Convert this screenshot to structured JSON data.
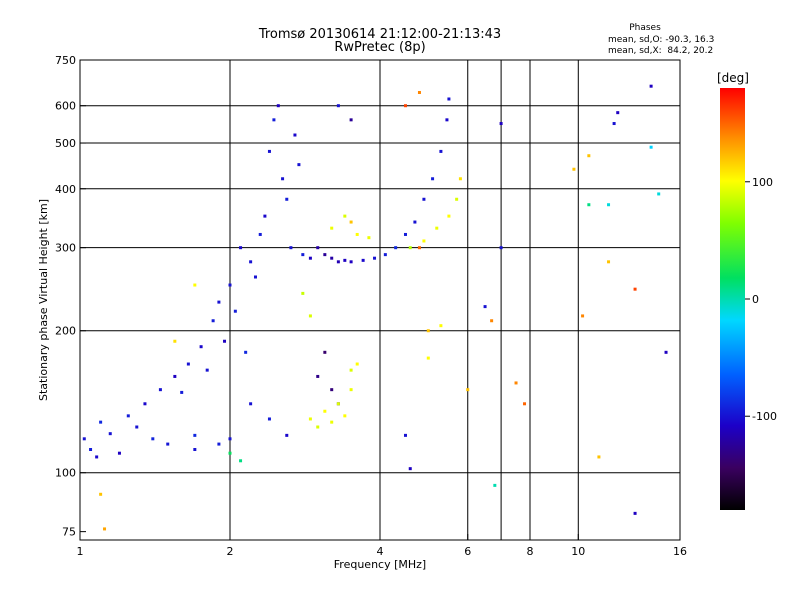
{
  "chart_data": {
    "type": "scatter",
    "title": "Tromsø 20130614 21:12:00-21:13:43",
    "subtitle": "RwPretec (8p)",
    "xlabel": "Frequency [MHz]",
    "ylabel": "Stationary phase Virtual Height [km]",
    "x_scale": "log",
    "y_scale": "log",
    "xlim": [
      1,
      16
    ],
    "ylim": [
      72,
      750
    ],
    "x_ticks": [
      1,
      2,
      4,
      6,
      8,
      10,
      16
    ],
    "x_tick_labels": [
      "1",
      "2",
      "4",
      "6",
      "8",
      "10",
      "16"
    ],
    "x_grid": [
      2,
      4,
      6,
      7,
      8,
      10
    ],
    "y_ticks": [
      75,
      100,
      200,
      300,
      400,
      500,
      600,
      750
    ],
    "y_tick_labels": [
      "75",
      "100",
      "200",
      "300",
      "400",
      "500",
      "600",
      "750"
    ],
    "y_grid": [
      100,
      200,
      300,
      400,
      500,
      600
    ],
    "grid": true,
    "phases_box": {
      "title": "Phases",
      "line_o": "mean, sd,O: -90.3, 16.3",
      "line_x": "mean, sd,X:  84.2, 20.2"
    },
    "colorbar": {
      "label": "[deg]",
      "range": [
        -180,
        180
      ],
      "ticks": [
        100,
        0,
        -100
      ],
      "tick_labels": [
        "100",
        "0",
        "-100"
      ]
    },
    "series": [
      {
        "name": "",
        "points": [
          {
            "x": 1.02,
            "y": 118,
            "phase": -100
          },
          {
            "x": 1.05,
            "y": 112,
            "phase": -95
          },
          {
            "x": 1.08,
            "y": 108,
            "phase": -105
          },
          {
            "x": 1.1,
            "y": 128,
            "phase": -90
          },
          {
            "x": 1.15,
            "y": 121,
            "phase": -100
          },
          {
            "x": 1.2,
            "y": 110,
            "phase": -110
          },
          {
            "x": 1.25,
            "y": 132,
            "phase": -95
          },
          {
            "x": 1.3,
            "y": 125,
            "phase": -100
          },
          {
            "x": 1.35,
            "y": 140,
            "phase": -105
          },
          {
            "x": 1.4,
            "y": 118,
            "phase": -92
          },
          {
            "x": 1.45,
            "y": 150,
            "phase": -100
          },
          {
            "x": 1.5,
            "y": 115,
            "phase": -98
          },
          {
            "x": 1.55,
            "y": 160,
            "phase": -110
          },
          {
            "x": 1.6,
            "y": 148,
            "phase": -95
          },
          {
            "x": 1.65,
            "y": 170,
            "phase": -100
          },
          {
            "x": 1.7,
            "y": 120,
            "phase": -90
          },
          {
            "x": 1.75,
            "y": 185,
            "phase": -105
          },
          {
            "x": 1.8,
            "y": 165,
            "phase": -100
          },
          {
            "x": 1.85,
            "y": 210,
            "phase": -95
          },
          {
            "x": 1.9,
            "y": 230,
            "phase": -100
          },
          {
            "x": 1.95,
            "y": 190,
            "phase": -110
          },
          {
            "x": 2.0,
            "y": 250,
            "phase": -100
          },
          {
            "x": 2.05,
            "y": 220,
            "phase": -95
          },
          {
            "x": 2.1,
            "y": 300,
            "phase": -105
          },
          {
            "x": 2.15,
            "y": 180,
            "phase": -90
          },
          {
            "x": 2.2,
            "y": 280,
            "phase": -100
          },
          {
            "x": 2.25,
            "y": 260,
            "phase": -100
          },
          {
            "x": 2.3,
            "y": 320,
            "phase": -95
          },
          {
            "x": 2.35,
            "y": 350,
            "phase": -105
          },
          {
            "x": 2.4,
            "y": 480,
            "phase": -100
          },
          {
            "x": 2.45,
            "y": 560,
            "phase": -95
          },
          {
            "x": 2.5,
            "y": 600,
            "phase": -110
          },
          {
            "x": 2.55,
            "y": 420,
            "phase": -100
          },
          {
            "x": 2.6,
            "y": 380,
            "phase": -95
          },
          {
            "x": 2.65,
            "y": 300,
            "phase": -100
          },
          {
            "x": 2.7,
            "y": 520,
            "phase": -105
          },
          {
            "x": 2.75,
            "y": 450,
            "phase": -100
          },
          {
            "x": 2.8,
            "y": 290,
            "phase": -95
          },
          {
            "x": 2.9,
            "y": 285,
            "phase": -110
          },
          {
            "x": 3.0,
            "y": 300,
            "phase": -120
          },
          {
            "x": 3.1,
            "y": 290,
            "phase": -125
          },
          {
            "x": 3.2,
            "y": 285,
            "phase": -120
          },
          {
            "x": 3.3,
            "y": 280,
            "phase": -115
          },
          {
            "x": 3.4,
            "y": 282,
            "phase": -110
          },
          {
            "x": 3.5,
            "y": 280,
            "phase": -110
          },
          {
            "x": 3.7,
            "y": 282,
            "phase": -105
          },
          {
            "x": 3.9,
            "y": 285,
            "phase": -100
          },
          {
            "x": 4.1,
            "y": 290,
            "phase": -95
          },
          {
            "x": 4.3,
            "y": 300,
            "phase": -90
          },
          {
            "x": 4.5,
            "y": 320,
            "phase": -95
          },
          {
            "x": 4.7,
            "y": 340,
            "phase": -100
          },
          {
            "x": 4.9,
            "y": 380,
            "phase": -100
          },
          {
            "x": 5.1,
            "y": 420,
            "phase": -95
          },
          {
            "x": 5.3,
            "y": 480,
            "phase": -100
          },
          {
            "x": 5.45,
            "y": 560,
            "phase": -105
          },
          {
            "x": 5.5,
            "y": 620,
            "phase": -100
          },
          {
            "x": 3.0,
            "y": 160,
            "phase": -130
          },
          {
            "x": 3.1,
            "y": 180,
            "phase": -140
          },
          {
            "x": 3.2,
            "y": 150,
            "phase": -135
          },
          {
            "x": 3.3,
            "y": 140,
            "phase": -130
          },
          {
            "x": 3.3,
            "y": 600,
            "phase": -100
          },
          {
            "x": 3.5,
            "y": 560,
            "phase": -125
          },
          {
            "x": 2.2,
            "y": 140,
            "phase": -100
          },
          {
            "x": 2.4,
            "y": 130,
            "phase": -95
          },
          {
            "x": 2.6,
            "y": 120,
            "phase": -105
          },
          {
            "x": 1.7,
            "y": 112,
            "phase": -100
          },
          {
            "x": 1.9,
            "y": 115,
            "phase": -95
          },
          {
            "x": 2.0,
            "y": 118,
            "phase": -100
          },
          {
            "x": 2.9,
            "y": 130,
            "phase": 95
          },
          {
            "x": 3.0,
            "y": 125,
            "phase": 90
          },
          {
            "x": 3.1,
            "y": 135,
            "phase": 100
          },
          {
            "x": 3.2,
            "y": 128,
            "phase": 95
          },
          {
            "x": 3.3,
            "y": 140,
            "phase": 90
          },
          {
            "x": 3.4,
            "y": 132,
            "phase": 100
          },
          {
            "x": 3.5,
            "y": 150,
            "phase": 95
          },
          {
            "x": 3.6,
            "y": 170,
            "phase": 100
          },
          {
            "x": 3.5,
            "y": 165,
            "phase": 90
          },
          {
            "x": 2.8,
            "y": 240,
            "phase": 85
          },
          {
            "x": 2.9,
            "y": 215,
            "phase": 90
          },
          {
            "x": 3.2,
            "y": 330,
            "phase": 95
          },
          {
            "x": 3.4,
            "y": 350,
            "phase": 90
          },
          {
            "x": 3.6,
            "y": 320,
            "phase": 100
          },
          {
            "x": 3.8,
            "y": 315,
            "phase": 95
          },
          {
            "x": 4.6,
            "y": 300,
            "phase": 80
          },
          {
            "x": 4.9,
            "y": 310,
            "phase": 100
          },
          {
            "x": 5.2,
            "y": 330,
            "phase": 95
          },
          {
            "x": 5.5,
            "y": 350,
            "phase": 100
          },
          {
            "x": 5.7,
            "y": 380,
            "phase": 90
          },
          {
            "x": 5.8,
            "y": 420,
            "phase": 110
          },
          {
            "x": 4.5,
            "y": 600,
            "phase": 160
          },
          {
            "x": 4.8,
            "y": 640,
            "phase": 140
          },
          {
            "x": 4.8,
            "y": 300,
            "phase": 150
          },
          {
            "x": 3.5,
            "y": 340,
            "phase": 120
          },
          {
            "x": 1.1,
            "y": 90,
            "phase": 120
          },
          {
            "x": 1.12,
            "y": 76,
            "phase": 130
          },
          {
            "x": 1.7,
            "y": 250,
            "phase": 100
          },
          {
            "x": 1.55,
            "y": 190,
            "phase": 110
          },
          {
            "x": 2.0,
            "y": 110,
            "phase": 20
          },
          {
            "x": 2.1,
            "y": 106,
            "phase": 10
          },
          {
            "x": 7.0,
            "y": 550,
            "phase": -110
          },
          {
            "x": 7.0,
            "y": 300,
            "phase": -100
          },
          {
            "x": 6.5,
            "y": 225,
            "phase": -100
          },
          {
            "x": 6.7,
            "y": 210,
            "phase": 140
          },
          {
            "x": 6.8,
            "y": 94,
            "phase": 0
          },
          {
            "x": 5.0,
            "y": 200,
            "phase": 120
          },
          {
            "x": 4.5,
            "y": 120,
            "phase": -100
          },
          {
            "x": 4.6,
            "y": 102,
            "phase": -110
          },
          {
            "x": 5.0,
            "y": 175,
            "phase": 100
          },
          {
            "x": 9.8,
            "y": 440,
            "phase": 120
          },
          {
            "x": 10.2,
            "y": 215,
            "phase": 140
          },
          {
            "x": 10.5,
            "y": 370,
            "phase": 10
          },
          {
            "x": 11.0,
            "y": 108,
            "phase": 120
          },
          {
            "x": 11.5,
            "y": 280,
            "phase": 120
          },
          {
            "x": 12.0,
            "y": 580,
            "phase": -110
          },
          {
            "x": 11.8,
            "y": 550,
            "phase": -100
          },
          {
            "x": 13.0,
            "y": 245,
            "phase": 160
          },
          {
            "x": 13.0,
            "y": 82,
            "phase": -110
          },
          {
            "x": 14.0,
            "y": 660,
            "phase": -110
          },
          {
            "x": 14.0,
            "y": 490,
            "phase": -20
          },
          {
            "x": 14.5,
            "y": 390,
            "phase": -10
          },
          {
            "x": 15.0,
            "y": 180,
            "phase": -110
          },
          {
            "x": 11.5,
            "y": 370,
            "phase": -10
          },
          {
            "x": 10.5,
            "y": 470,
            "phase": 120
          },
          {
            "x": 7.5,
            "y": 155,
            "phase": 140
          },
          {
            "x": 7.8,
            "y": 140,
            "phase": 150
          },
          {
            "x": 6.0,
            "y": 150,
            "phase": 120
          },
          {
            "x": 5.3,
            "y": 205,
            "phase": 100
          }
        ]
      }
    ]
  }
}
